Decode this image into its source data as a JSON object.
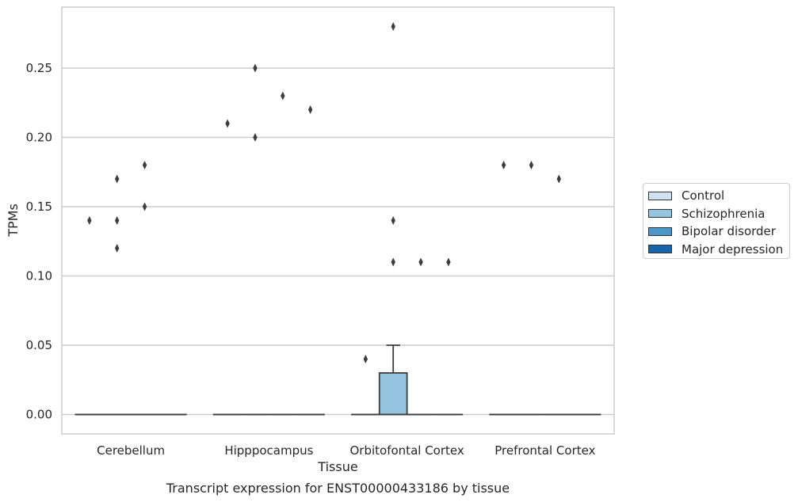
{
  "chart_data": {
    "type": "box",
    "title": "",
    "caption": "Transcript expression for ENST00000433186 by tissue",
    "xlabel": "Tissue",
    "ylabel": "TPMs",
    "ylim": [
      -0.014,
      0.294
    ],
    "yticks": [
      "0.00",
      "0.05",
      "0.10",
      "0.15",
      "0.20",
      "0.25"
    ],
    "grid": true,
    "legend_position": "right",
    "categories": [
      "Cerebellum",
      "Hipppocampus",
      "Orbitofontal Cortex",
      "Prefrontal Cortex"
    ],
    "series": [
      {
        "name": "Control",
        "color": "#d0e1f2",
        "boxes": [
          {
            "q1": 0,
            "median": 0,
            "q3": 0,
            "whisker_low": 0,
            "whisker_high": 0,
            "outliers": [
              0.14
            ]
          },
          {
            "q1": 0,
            "median": 0,
            "q3": 0,
            "whisker_low": 0,
            "whisker_high": 0,
            "outliers": [
              0.21
            ]
          },
          {
            "q1": 0,
            "median": 0,
            "q3": 0,
            "whisker_low": 0,
            "whisker_high": 0,
            "outliers": [
              0.04
            ]
          },
          {
            "q1": 0,
            "median": 0,
            "q3": 0,
            "whisker_low": 0,
            "whisker_high": 0,
            "outliers": [
              0.18
            ]
          }
        ]
      },
      {
        "name": "Schizophrenia",
        "color": "#94c4df",
        "boxes": [
          {
            "q1": 0,
            "median": 0,
            "q3": 0,
            "whisker_low": 0,
            "whisker_high": 0,
            "outliers": [
              0.12,
              0.14,
              0.17
            ]
          },
          {
            "q1": 0,
            "median": 0,
            "q3": 0,
            "whisker_low": 0,
            "whisker_high": 0,
            "outliers": [
              0.2,
              0.25
            ]
          },
          {
            "q1": 0,
            "median": 0,
            "q3": 0.03,
            "whisker_low": 0,
            "whisker_high": 0.05,
            "outliers": [
              0.11,
              0.14,
              0.28
            ]
          },
          {
            "q1": 0,
            "median": 0,
            "q3": 0,
            "whisker_low": 0,
            "whisker_high": 0,
            "outliers": [
              0.18
            ]
          }
        ]
      },
      {
        "name": "Bipolar disorder",
        "color": "#4a98c9",
        "boxes": [
          {
            "q1": 0,
            "median": 0,
            "q3": 0,
            "whisker_low": 0,
            "whisker_high": 0,
            "outliers": [
              0.15,
              0.18
            ]
          },
          {
            "q1": 0,
            "median": 0,
            "q3": 0,
            "whisker_low": 0,
            "whisker_high": 0,
            "outliers": [
              0.23
            ]
          },
          {
            "q1": 0,
            "median": 0,
            "q3": 0,
            "whisker_low": 0,
            "whisker_high": 0,
            "outliers": [
              0.11
            ]
          },
          {
            "q1": 0,
            "median": 0,
            "q3": 0,
            "whisker_low": 0,
            "whisker_high": 0,
            "outliers": [
              0.17
            ]
          }
        ]
      },
      {
        "name": "Major depression",
        "color": "#1764ab",
        "boxes": [
          {
            "q1": 0,
            "median": 0,
            "q3": 0,
            "whisker_low": 0,
            "whisker_high": 0,
            "outliers": []
          },
          {
            "q1": 0,
            "median": 0,
            "q3": 0,
            "whisker_low": 0,
            "whisker_high": 0,
            "outliers": [
              0.22
            ]
          },
          {
            "q1": 0,
            "median": 0,
            "q3": 0,
            "whisker_low": 0,
            "whisker_high": 0,
            "outliers": [
              0.11
            ]
          },
          {
            "q1": 0,
            "median": 0,
            "q3": 0,
            "whisker_low": 0,
            "whisker_high": 0,
            "outliers": []
          }
        ]
      }
    ]
  },
  "legend_items": [
    "Control",
    "Schizophrenia",
    "Bipolar disorder",
    "Major depression"
  ]
}
